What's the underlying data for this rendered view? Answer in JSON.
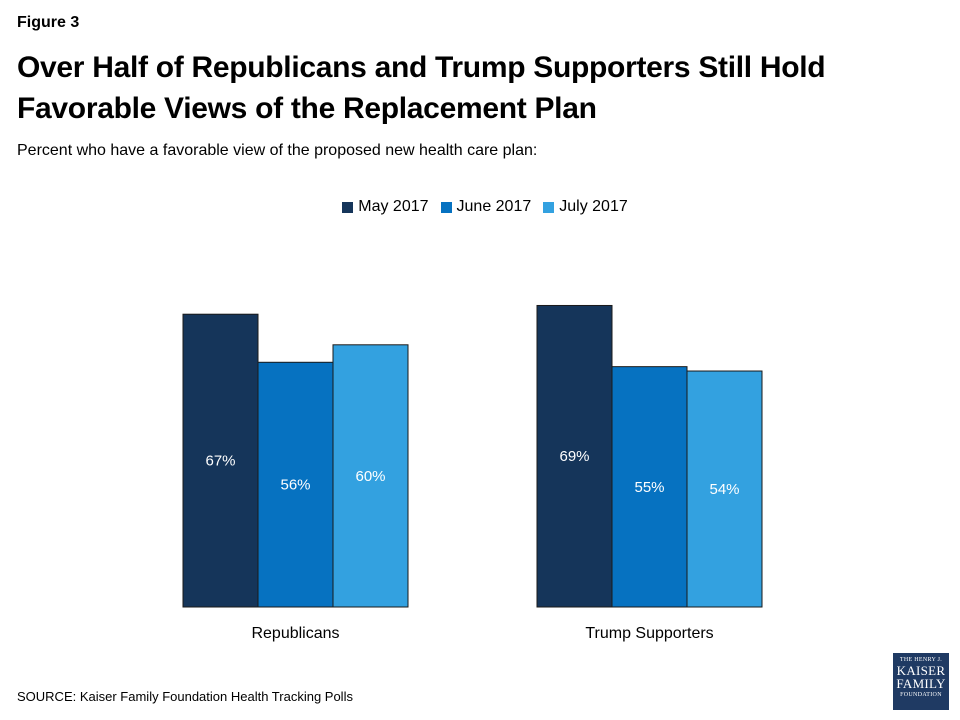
{
  "figure_label": "Figure 3",
  "title_line1": "Over Half of Republicans and Trump Supporters Still Hold",
  "title_line2": "Favorable Views of the Replacement Plan",
  "subtitle": "Percent who have a favorable view of the proposed new health care plan:",
  "source": "SOURCE: Kaiser Family Foundation Health Tracking Polls",
  "logo": {
    "line1": "THE HENRY J.",
    "line2": "KAISER",
    "line3": "FAMILY",
    "line4": "FOUNDATION"
  },
  "colors": {
    "May 2017": "#15355a",
    "June 2017": "#0672c1",
    "July 2017": "#33a1e0",
    "logo_bg": "#1f3a63"
  },
  "chart_data": {
    "type": "bar",
    "categories": [
      "Republicans",
      "Trump Supporters"
    ],
    "series": [
      {
        "name": "May 2017",
        "values": [
          67,
          69
        ],
        "labels": [
          "67%",
          "69%"
        ],
        "color": "#15355a"
      },
      {
        "name": "June 2017",
        "values": [
          56,
          55
        ],
        "labels": [
          "56%",
          "55%"
        ],
        "color": "#0672c1"
      },
      {
        "name": "July 2017",
        "values": [
          60,
          54
        ],
        "labels": [
          "60%",
          "54%"
        ],
        "color": "#33a1e0"
      }
    ],
    "title": "Over Half of Republicans and Trump Supporters Still Hold Favorable Views of the Replacement Plan",
    "subtitle": "Percent who have a favorable view of the proposed new health care plan:",
    "xlabel": "",
    "ylabel": "",
    "ylim": [
      0,
      100
    ],
    "grid": false,
    "legend_position": "top-center",
    "data_labels": "inside-middle"
  }
}
